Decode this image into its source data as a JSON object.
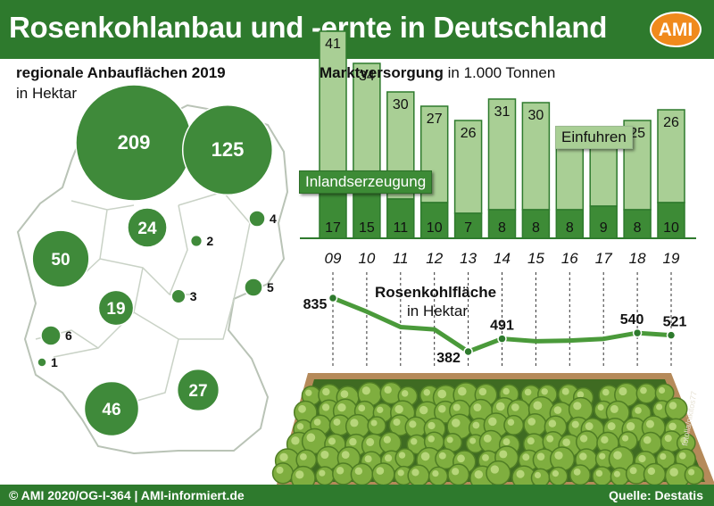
{
  "header": {
    "title": "Rosenkohlanbau und -ernte in Deutschland",
    "logo": "AMI"
  },
  "footer": {
    "copyright": "© AMI 2020/OG-I-364 | AMI-informiert.de",
    "source": "Quelle: Destatis"
  },
  "colors": {
    "brand_green": "#2e7a2d",
    "light_green": "#a9cf95",
    "dark_green": "#3d8b36",
    "logo_orange": "#f08a1c"
  },
  "photo": {
    "credit": "fotolia/nikitos77"
  },
  "chart_data": [
    {
      "type": "bubble-map",
      "title": "regionale Anbauflächen 2019",
      "subtitle": "in Hektar",
      "values": [
        209,
        125,
        24,
        2,
        4,
        50,
        5,
        3,
        19,
        6,
        1,
        27,
        46
      ]
    },
    {
      "type": "bar",
      "stacked": true,
      "title": "Marktversorgung",
      "unit": "in 1.000 Tonnen",
      "categories": [
        "09",
        "10",
        "11",
        "12",
        "13",
        "14",
        "15",
        "16",
        "17",
        "18",
        "19"
      ],
      "series": [
        {
          "name": "Inlandserzeugung",
          "values": [
            17,
            15,
            11,
            10,
            7,
            8,
            8,
            8,
            9,
            8,
            10
          ]
        },
        {
          "name": "Einfuhren",
          "values": [
            41,
            34,
            30,
            27,
            26,
            31,
            30,
            23,
            22,
            25,
            26
          ]
        }
      ]
    },
    {
      "type": "line",
      "title": "Rosenkohlfläche",
      "subtitle": "in Hektar",
      "x": [
        "09",
        "10",
        "11",
        "12",
        "13",
        "14",
        "15",
        "16",
        "17",
        "18",
        "19"
      ],
      "y": [
        835,
        720,
        590,
        570,
        382,
        491,
        470,
        475,
        490,
        540,
        521
      ],
      "labeled": [
        "835",
        "382",
        "491",
        "540",
        "521"
      ]
    }
  ]
}
